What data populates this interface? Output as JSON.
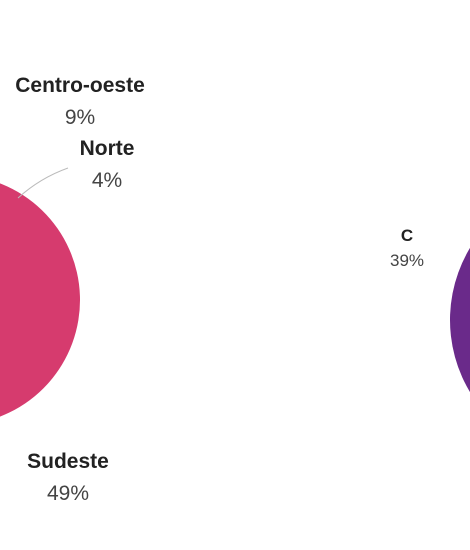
{
  "chart_data": [
    {
      "type": "pie",
      "categories": [
        "Sudeste",
        "Centro-oeste",
        "Norte"
      ],
      "values": [
        49,
        9,
        4
      ],
      "labels": [
        {
          "name": "Centro-oeste",
          "pct": "9%"
        },
        {
          "name": "Norte",
          "pct": "4%"
        },
        {
          "name": "Sudeste",
          "pct": "49%"
        }
      ],
      "colors": {
        "Sudeste": "#d63b6e",
        "Centro-oeste": "#f0646a",
        "Norte": "#f27a5e"
      }
    },
    {
      "type": "pie",
      "categories": [
        "C"
      ],
      "values": [
        39
      ],
      "labels": [
        {
          "name": "C",
          "pct": "39%"
        }
      ],
      "colors": {
        "C": "#6a2a8a"
      }
    }
  ]
}
